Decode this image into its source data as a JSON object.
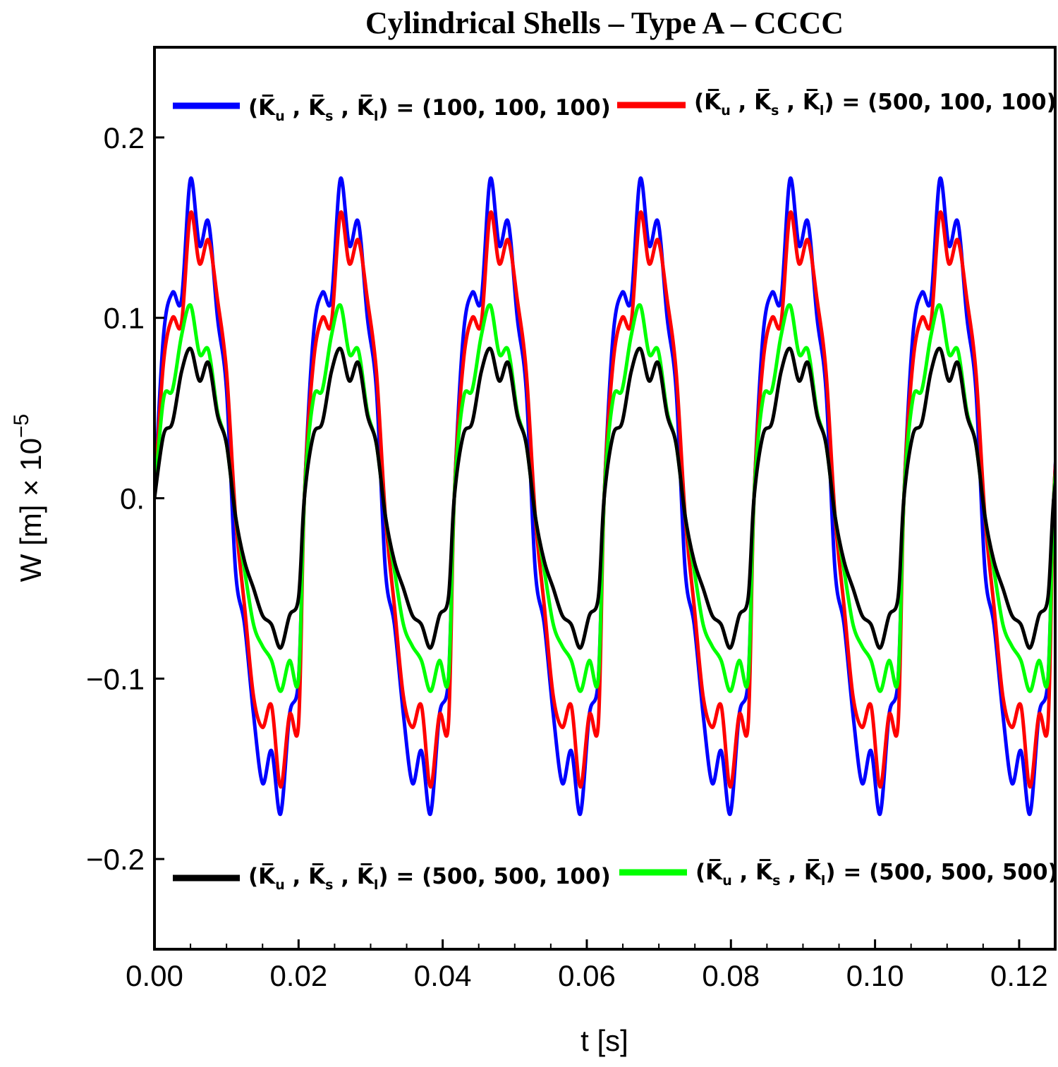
{
  "chart_data": {
    "type": "line",
    "title": "Cylindrical Shells – Type A – CCCC",
    "xlabel": "t [s]",
    "ylabel_main": "W [m] × 10",
    "ylabel_exponent": "−5",
    "xlim": [
      0.0,
      0.125
    ],
    "ylim": [
      -0.25,
      0.25
    ],
    "x_ticks": [
      0.0,
      0.02,
      0.04,
      0.06,
      0.08,
      0.1,
      0.12
    ],
    "x_tick_labels": [
      "0.00",
      "0.02",
      "0.04",
      "0.06",
      "0.08",
      "0.10",
      "0.12"
    ],
    "y_ticks": [
      -0.2,
      -0.1,
      0.0,
      0.1,
      0.2
    ],
    "y_tick_labels": [
      "−0.2",
      "−0.1",
      "0.",
      "0.1",
      "0.2"
    ],
    "grid": false,
    "period_s": 0.0208,
    "sample_times": [
      0.0,
      0.00125,
      0.0025,
      0.00375,
      0.005,
      0.00625,
      0.0075,
      0.00875,
      0.01,
      0.01125,
      0.0125,
      0.01375,
      0.015,
      0.01625,
      0.0175,
      0.01875,
      0.02
    ],
    "series": [
      {
        "name_values": "100, 100, 100",
        "color": "#0000ff",
        "legend_position": "top-left",
        "peak": 0.177,
        "trough": -0.175,
        "values": [
          0.0,
          0.09,
          0.114,
          0.11,
          0.177,
          0.14,
          0.153,
          0.1,
          0.06,
          -0.04,
          -0.07,
          -0.12,
          -0.158,
          -0.14,
          -0.175,
          -0.12,
          -0.1
        ]
      },
      {
        "name_values": "500, 100, 100",
        "color": "#ff0000",
        "legend_position": "top-right",
        "peak": 0.158,
        "trough": -0.16,
        "values": [
          0.0,
          0.075,
          0.1,
          0.097,
          0.158,
          0.13,
          0.143,
          0.11,
          0.07,
          -0.01,
          -0.06,
          -0.11,
          -0.127,
          -0.115,
          -0.16,
          -0.12,
          -0.125
        ]
      },
      {
        "name_values": "500, 500, 100",
        "color": "#000000",
        "legend_position": "bottom-left",
        "peak": 0.083,
        "trough": -0.083,
        "values": [
          0.0,
          0.035,
          0.042,
          0.07,
          0.083,
          0.065,
          0.075,
          0.046,
          0.03,
          -0.01,
          -0.035,
          -0.05,
          -0.065,
          -0.07,
          -0.083,
          -0.065,
          -0.055
        ]
      },
      {
        "name_values": "500, 500, 500",
        "color": "#00ff00",
        "legend_position": "bottom-right",
        "peak": 0.107,
        "trough": -0.107,
        "values": [
          0.0,
          0.055,
          0.06,
          0.09,
          0.107,
          0.08,
          0.082,
          0.048,
          0.03,
          -0.01,
          -0.04,
          -0.07,
          -0.082,
          -0.09,
          -0.107,
          -0.09,
          -0.1
        ]
      }
    ]
  }
}
